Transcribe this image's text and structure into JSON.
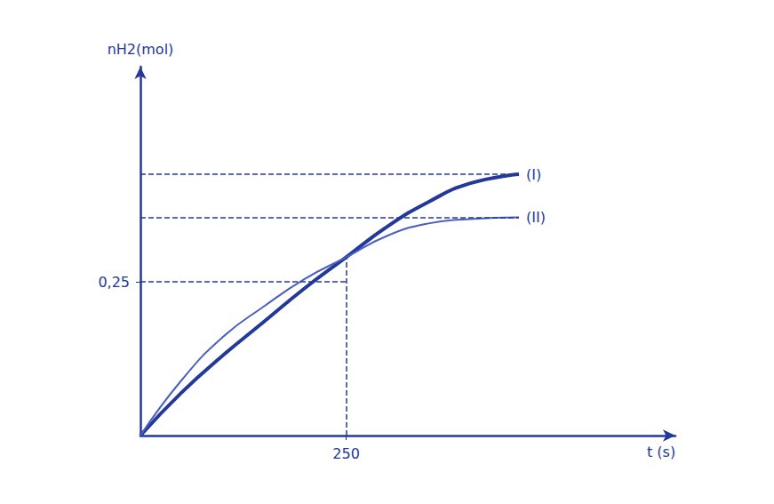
{
  "chart_data": {
    "type": "line",
    "y_label": "nH2(mol)",
    "x_label": "t (s)",
    "xlim": [
      0,
      650
    ],
    "ylim": [
      0,
      0.6
    ],
    "xticks": [
      250
    ],
    "yticks": [
      {
        "value": 0.25,
        "label": "0,25"
      }
    ],
    "grid": false,
    "series": [
      {
        "name": "(I)",
        "color": "#23399a",
        "line_style": "solid",
        "x": [
          0,
          50,
          100,
          150,
          200,
          250,
          300,
          350,
          400,
          460
        ],
        "values": [
          0,
          0.07,
          0.13,
          0.185,
          0.24,
          0.29,
          0.34,
          0.38,
          0.41,
          0.425
        ]
      },
      {
        "name": "(II)",
        "color": "#4a5fc0",
        "line_style": "solid",
        "x": [
          0,
          50,
          100,
          150,
          200,
          250,
          300,
          350,
          400,
          460
        ],
        "values": [
          0,
          0.09,
          0.16,
          0.21,
          0.255,
          0.29,
          0.325,
          0.345,
          0.352,
          0.355
        ]
      }
    ]
  }
}
